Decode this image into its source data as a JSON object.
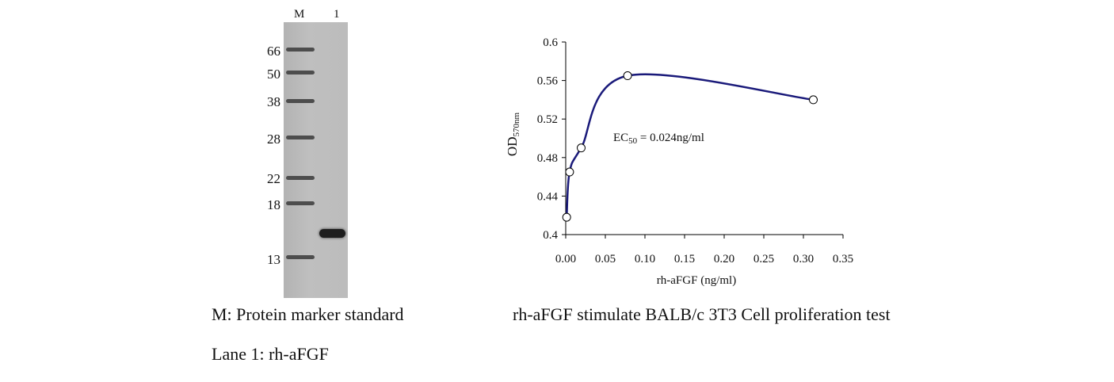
{
  "gel": {
    "lane_labels": [
      "M",
      "1"
    ],
    "marker_weights": [
      "66",
      "50",
      "38",
      "28",
      "22",
      "18",
      "13"
    ]
  },
  "captions": {
    "gel_caption_1": "M: Protein marker standard",
    "gel_caption_2": "Lane 1: rh-aFGF",
    "chart_caption": "rh-aFGF stimulate BALB/c 3T3 Cell proliferation test"
  },
  "chart_data": {
    "type": "scatter",
    "title": "",
    "xlabel": "rh-aFGF (ng/ml)",
    "ylabel_main": "OD",
    "ylabel_sub": "570nm",
    "annotation_main": "EC",
    "annotation_sub": "50",
    "annotation_rest": " = 0.024ng/ml",
    "xlim": [
      0,
      0.35
    ],
    "ylim": [
      0.4,
      0.6
    ],
    "x_ticks": [
      "0.00",
      "0.05",
      "0.10",
      "0.15",
      "0.20",
      "0.25",
      "0.30",
      "0.35"
    ],
    "y_ticks": [
      "0.4",
      "0.44",
      "0.48",
      "0.52",
      "0.56",
      "0.6"
    ],
    "series": [
      {
        "x": [
          0.0012,
          0.0049,
          0.0195,
          0.0781,
          0.3125
        ],
        "y": [
          0.418,
          0.465,
          0.49,
          0.565,
          0.54
        ]
      }
    ],
    "line_color": "#1a1a7a",
    "grid": false
  }
}
